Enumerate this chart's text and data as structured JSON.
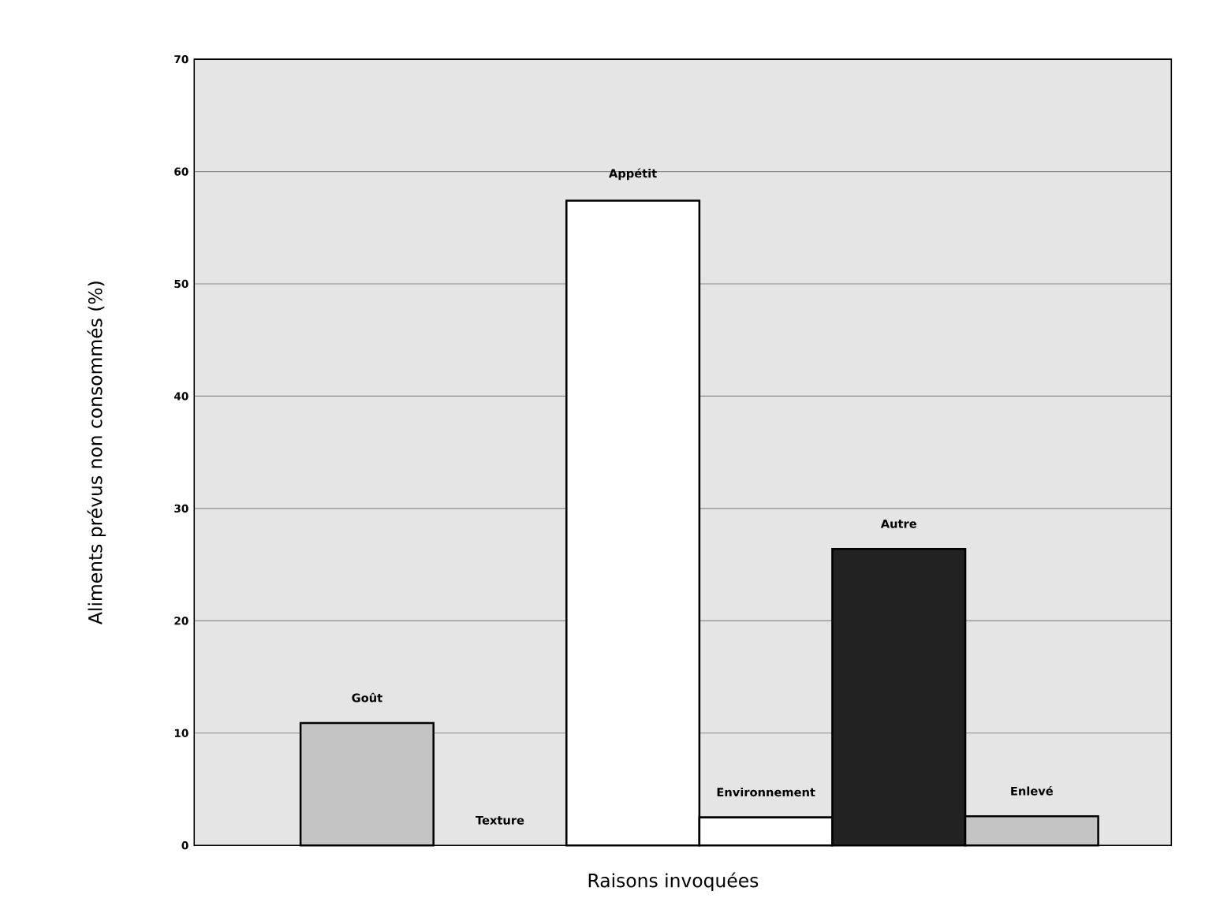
{
  "chart_data": {
    "type": "bar",
    "categories": [
      "Goût",
      "Texture",
      "Appétit",
      "Environnement",
      "Autre",
      "Enlevé"
    ],
    "values": [
      10.9,
      0,
      57.4,
      2.5,
      26.4,
      2.6
    ],
    "colors": [
      "#c4c4c4",
      "#ffffff",
      "#ffffff",
      "#ffffff",
      "#222222",
      "#c4c4c4"
    ],
    "xlabel": "Raisons invoquées",
    "ylabel": "Aliments prévus non consommés (%)",
    "ylim": [
      0,
      70
    ],
    "yticks": [
      0,
      10,
      20,
      30,
      40,
      50,
      60,
      70
    ],
    "grid": "y"
  }
}
